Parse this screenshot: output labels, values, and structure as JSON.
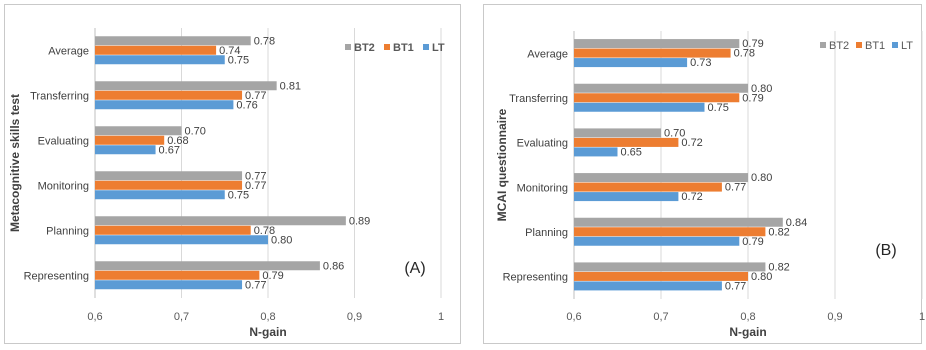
{
  "chart_data": [
    {
      "type": "bar",
      "orientation": "horizontal",
      "panel_label": "(A)",
      "ylabel": "Metacognitive skills test",
      "xlabel": "N-gain",
      "xlim": [
        0.6,
        1.0
      ],
      "xticks": [
        "0,6",
        "0,7",
        "0,8",
        "0,9",
        "1"
      ],
      "grid": "vertical",
      "legend_position": "top-right",
      "categories": [
        "Average",
        "Transferring",
        "Evaluating",
        "Monitoring",
        "Planning",
        "Representing"
      ],
      "series": [
        {
          "name": "BT2",
          "color": "#a5a5a5",
          "values": [
            0.78,
            0.81,
            0.7,
            0.77,
            0.89,
            0.86
          ],
          "labels": [
            "0.78",
            "0.81",
            "0.70",
            "0.77",
            "0.89",
            "0.86"
          ]
        },
        {
          "name": "BT1",
          "color": "#ed7d31",
          "values": [
            0.74,
            0.77,
            0.68,
            0.77,
            0.78,
            0.79
          ],
          "labels": [
            "0.74",
            "0.77",
            "0.68",
            "0.77",
            "0.78",
            "0.79"
          ]
        },
        {
          "name": "LT",
          "color": "#5b9bd5",
          "values": [
            0.75,
            0.76,
            0.67,
            0.75,
            0.8,
            0.77
          ],
          "labels": [
            "0.75",
            "0.76",
            "0.67",
            "0.75",
            "0.80",
            "0.77"
          ]
        }
      ]
    },
    {
      "type": "bar",
      "orientation": "horizontal",
      "panel_label": "(B)",
      "ylabel": "MCAI questionnaire",
      "xlabel": "N-gain",
      "xlim": [
        0.6,
        1.0
      ],
      "xticks": [
        "0,6",
        "0,7",
        "0,8",
        "0,9",
        "1"
      ],
      "grid": "vertical",
      "legend_position": "top-right",
      "categories": [
        "Average",
        "Transferring",
        "Evaluating",
        "Monitoring",
        "Planning",
        "Representing"
      ],
      "series": [
        {
          "name": "BT2",
          "color": "#a5a5a5",
          "values": [
            0.79,
            0.8,
            0.7,
            0.8,
            0.84,
            0.82
          ],
          "labels": [
            "0.79",
            "0.80",
            "0.70",
            "0.80",
            "0.84",
            "0.82"
          ]
        },
        {
          "name": "BT1",
          "color": "#ed7d31",
          "values": [
            0.78,
            0.79,
            0.72,
            0.77,
            0.82,
            0.8
          ],
          "labels": [
            "0.78",
            "0.79",
            "0.72",
            "0.77",
            "0.82",
            "0.80"
          ]
        },
        {
          "name": "LT",
          "color": "#5b9bd5",
          "values": [
            0.73,
            0.75,
            0.65,
            0.72,
            0.79,
            0.77
          ],
          "labels": [
            "0.73",
            "0.75",
            "0.65",
            "0.72",
            "0.79",
            "0.77"
          ]
        }
      ]
    }
  ]
}
